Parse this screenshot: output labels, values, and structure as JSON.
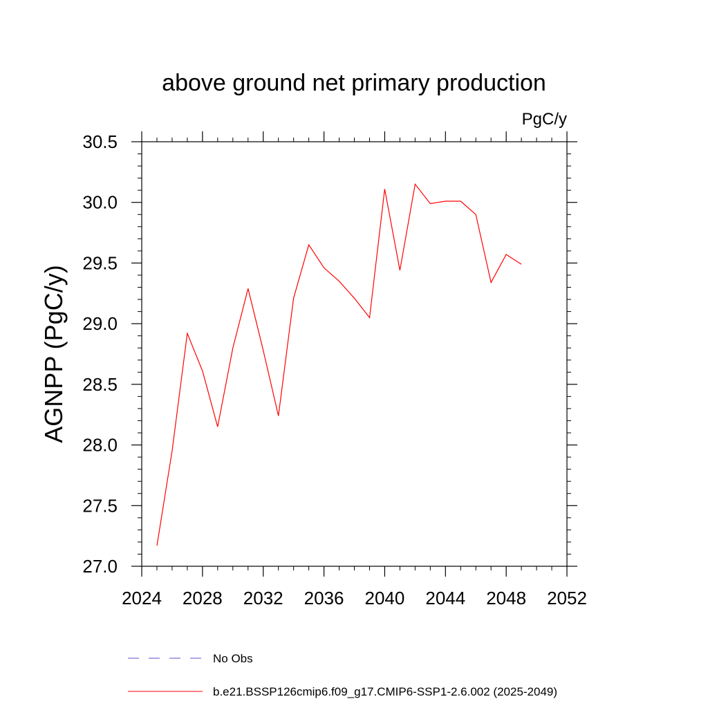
{
  "chart_data": {
    "type": "line",
    "title": "above ground net primary production",
    "units_label": "PgC/y",
    "ylabel": "AGNPP  (PgC/y)",
    "xlabel": "",
    "xlim": [
      2024,
      2052
    ],
    "ylim": [
      27.0,
      30.5
    ],
    "x_ticks": [
      2024,
      2028,
      2032,
      2036,
      2040,
      2044,
      2048,
      2052
    ],
    "x_tick_labels": [
      "2024",
      "2028",
      "2032",
      "2036",
      "2040",
      "2044",
      "2048",
      "2052"
    ],
    "y_ticks": [
      27.0,
      27.5,
      28.0,
      28.5,
      29.0,
      29.5,
      30.0,
      30.5
    ],
    "y_tick_labels": [
      "27.0",
      "27.5",
      "28.0",
      "28.5",
      "29.0",
      "29.5",
      "30.0",
      "30.5"
    ],
    "series": [
      {
        "name": "b.e21.BSSP126cmip6.f09_g17.CMIP6-SSP1-2.6.002 (2025-2049)",
        "color": "#ff0000",
        "dash": "solid",
        "x": [
          2025,
          2026,
          2027,
          2028,
          2029,
          2030,
          2031,
          2032,
          2033,
          2034,
          2035,
          2036,
          2037,
          2038,
          2039,
          2040,
          2041,
          2042,
          2043,
          2044,
          2045,
          2046,
          2047,
          2048,
          2049
        ],
        "y": [
          27.17,
          27.95,
          28.92,
          28.61,
          28.15,
          28.8,
          29.29,
          28.78,
          28.24,
          29.21,
          29.65,
          29.46,
          29.35,
          29.21,
          29.05,
          30.11,
          29.44,
          30.15,
          29.99,
          30.01,
          30.01,
          29.9,
          29.34,
          29.57,
          29.49
        ]
      }
    ],
    "legend": [
      {
        "label": "No Obs",
        "color": "#5a4fcf",
        "dash": "dashed"
      },
      {
        "label": "b.e21.BSSP126cmip6.f09_g17.CMIP6-SSP1-2.6.002 (2025-2049)",
        "color": "#ff0000",
        "dash": "solid"
      }
    ],
    "legend_position": "bottom",
    "grid": false
  }
}
